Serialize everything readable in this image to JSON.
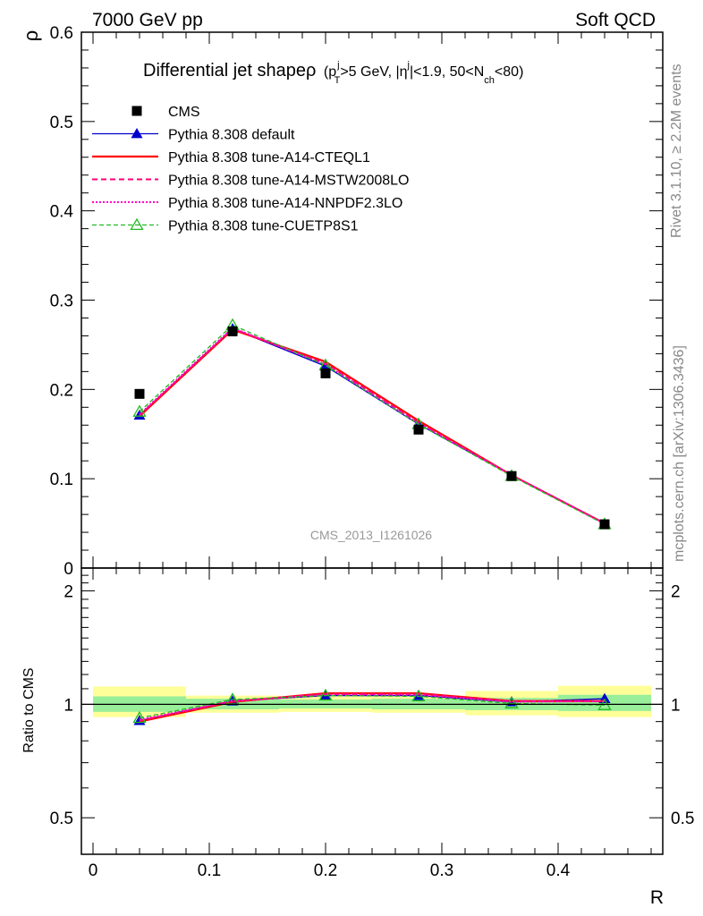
{
  "header": {
    "left": "7000 GeV pp",
    "right": "Soft QCD"
  },
  "side_labels": {
    "rivet": "Rivet 3.1.10, ≥ 2.2M events",
    "mcplots": "mcplots.cern.ch [arXiv:1306.3436]"
  },
  "analysis_id": "CMS_2013_I1261026",
  "colors": {
    "cms": "#000000",
    "default": "#0000cc",
    "cteql1": "#ff0000",
    "mstw": "#ff0077",
    "nnpdf": "#ff00cc",
    "cuetp8s1": "#22bb22",
    "band_inner": "#99ee99",
    "band_outer": "#ffff99"
  },
  "chart_data": {
    "type": "line",
    "title_main": "Differential jet shapeρ",
    "title_cuts": {
      "open": "(p",
      "pt_sup": "j",
      "pt_sub": "T",
      "pt_cut": ">5 GeV, |η",
      "eta_sup": "j",
      "eta_cut": "|<1.9, 50<N",
      "nch_sub": "ch",
      "close": "<80)"
    },
    "xlabel": "R",
    "ylabel": "ρ",
    "ratio_ylabel": "Ratio to CMS",
    "xlim": [
      -0.01,
      0.49
    ],
    "ylim": [
      0,
      0.6
    ],
    "ratio_ylim": [
      0.4,
      2.3
    ],
    "x_ticks": [
      "0",
      "0.1",
      "0.2",
      "0.3",
      "0.4"
    ],
    "y_ticks": [
      "0",
      "0.1",
      "0.2",
      "0.3",
      "0.4",
      "0.5",
      "0.6"
    ],
    "ratio_ticks": [
      "0.5",
      "1",
      "2"
    ],
    "x": [
      0.04,
      0.12,
      0.2,
      0.28,
      0.36,
      0.44
    ],
    "cms": {
      "name": "CMS",
      "values": [
        0.195,
        0.265,
        0.218,
        0.155,
        0.103,
        0.049
      ]
    },
    "bins": [
      {
        "lo": 0.0,
        "hi": 0.08,
        "inner": [
          0.955,
          1.05
        ],
        "outer": [
          0.925,
          1.115
        ]
      },
      {
        "lo": 0.08,
        "hi": 0.16,
        "inner": [
          0.97,
          1.035
        ],
        "outer": [
          0.95,
          1.055
        ]
      },
      {
        "lo": 0.16,
        "hi": 0.24,
        "inner": [
          0.975,
          1.03
        ],
        "outer": [
          0.955,
          1.05
        ]
      },
      {
        "lo": 0.24,
        "hi": 0.32,
        "inner": [
          0.97,
          1.035
        ],
        "outer": [
          0.95,
          1.055
        ]
      },
      {
        "lo": 0.32,
        "hi": 0.4,
        "inner": [
          0.965,
          1.04
        ],
        "outer": [
          0.935,
          1.085
        ]
      },
      {
        "lo": 0.4,
        "hi": 0.48,
        "inner": [
          0.96,
          1.06
        ],
        "outer": [
          0.925,
          1.12
        ]
      }
    ],
    "series": [
      {
        "name": "Pythia 8.308 default",
        "key": "default",
        "values": [
          0.171,
          0.268,
          0.226,
          0.161,
          0.104,
          0.05
        ],
        "ratio": [
          0.905,
          1.02,
          1.055,
          1.055,
          1.015,
          1.035
        ]
      },
      {
        "name": "Pythia 8.308 tune-A14-CTEQL1",
        "key": "cteql1",
        "values": [
          0.17,
          0.267,
          0.231,
          0.165,
          0.104,
          0.05
        ],
        "ratio": [
          0.9,
          1.015,
          1.07,
          1.07,
          1.02,
          1.02
        ]
      },
      {
        "name": "Pythia 8.308 tune-A14-MSTW2008LO",
        "key": "mstw",
        "values": [
          0.171,
          0.268,
          0.229,
          0.163,
          0.104,
          0.05
        ],
        "ratio": [
          0.905,
          1.02,
          1.065,
          1.065,
          1.02,
          1.02
        ]
      },
      {
        "name": "Pythia 8.308 tune-A14-NNPDF2.3LO",
        "key": "nnpdf",
        "values": [
          0.172,
          0.269,
          0.228,
          0.162,
          0.104,
          0.05
        ],
        "ratio": [
          0.91,
          1.02,
          1.06,
          1.06,
          1.015,
          1.02
        ]
      },
      {
        "name": "Pythia 8.308 tune-CUETP8S1",
        "key": "cuetp8s1",
        "values": [
          0.175,
          0.272,
          0.227,
          0.161,
          0.103,
          0.049
        ],
        "ratio": [
          0.92,
          1.03,
          1.055,
          1.05,
          1.005,
          0.995
        ]
      }
    ]
  }
}
